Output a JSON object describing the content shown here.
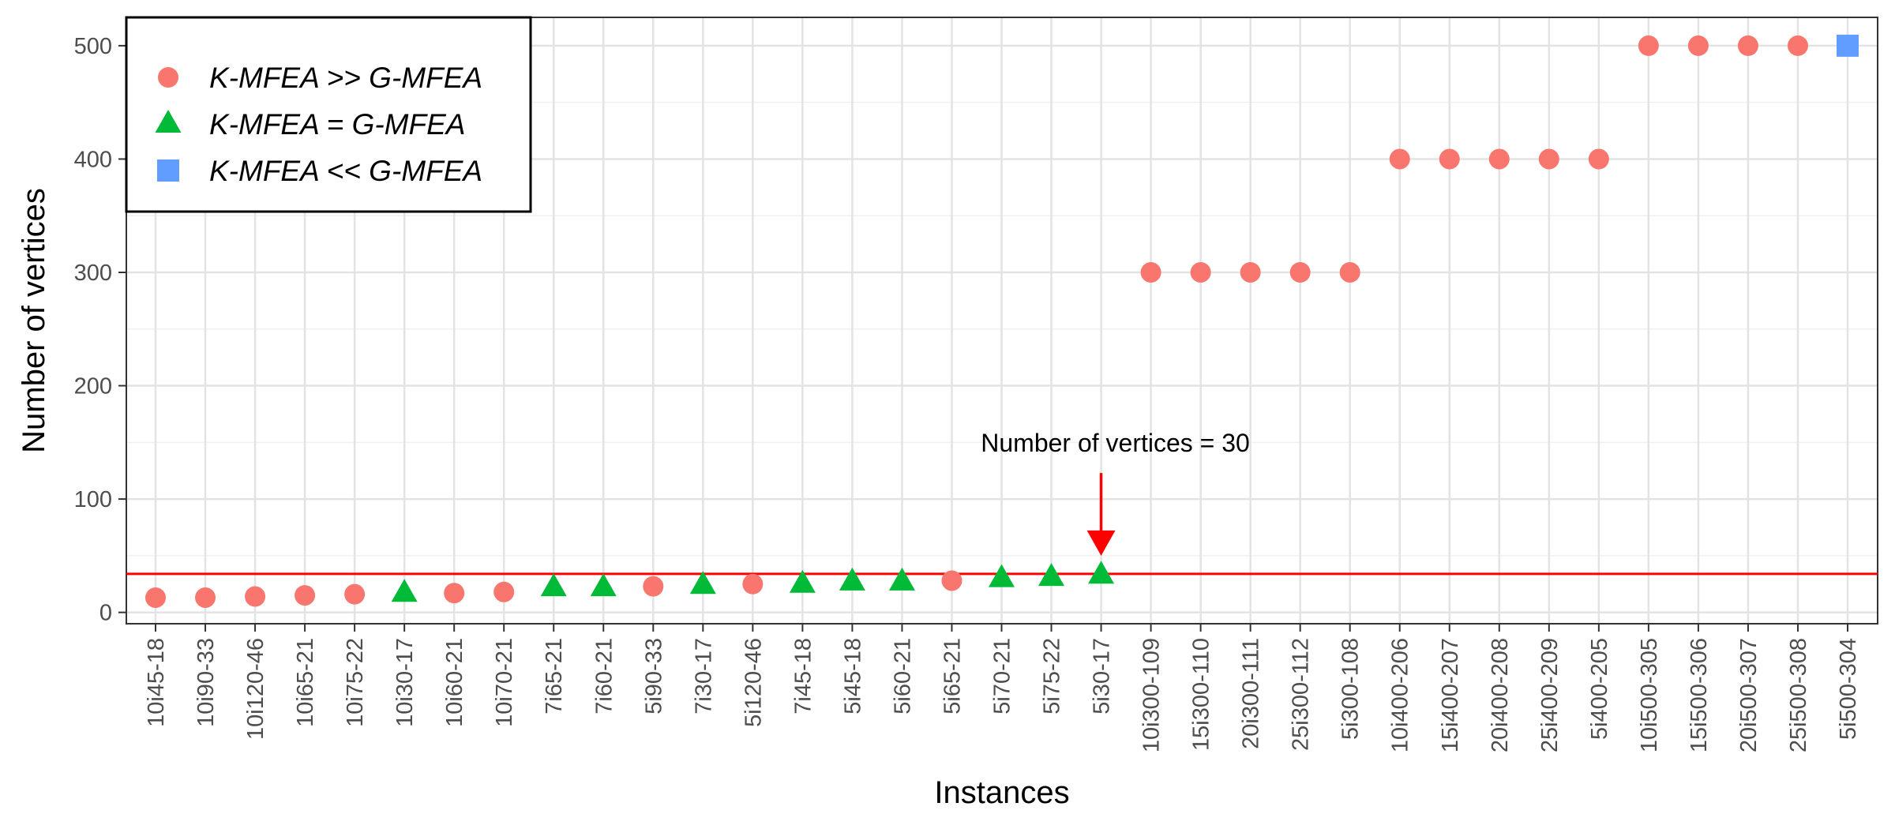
{
  "chart_data": {
    "type": "scatter",
    "title": "",
    "xlabel": "Instances",
    "ylabel": "Number of vertices",
    "ylim": [
      -10,
      525
    ],
    "yticks": [
      0,
      100,
      200,
      300,
      400,
      500
    ],
    "grid": true,
    "legend_position": "top-left",
    "colors": {
      "K-MFEA >> G-MFEA": "#f8766d",
      "K-MFEA = G-MFEA": "#00ba38",
      "K-MFEA << G-MFEA": "#619cff",
      "reference_line": "#ff0000"
    },
    "series": [
      {
        "name": "K-MFEA >> G-MFEA",
        "marker": "circle"
      },
      {
        "name": "K-MFEA = G-MFEA",
        "marker": "triangle"
      },
      {
        "name": "K-MFEA << G-MFEA",
        "marker": "square"
      }
    ],
    "points": [
      {
        "x": "10i45-18",
        "y": 13,
        "series": 0
      },
      {
        "x": "10i90-33",
        "y": 13,
        "series": 0
      },
      {
        "x": "10i120-46",
        "y": 14,
        "series": 0
      },
      {
        "x": "10i65-21",
        "y": 15,
        "series": 0
      },
      {
        "x": "10i75-22",
        "y": 16,
        "series": 0
      },
      {
        "x": "10i30-17",
        "y": 17,
        "series": 1
      },
      {
        "x": "10i60-21",
        "y": 17,
        "series": 0
      },
      {
        "x": "10i70-21",
        "y": 18,
        "series": 0
      },
      {
        "x": "7i65-21",
        "y": 22,
        "series": 1
      },
      {
        "x": "7i60-21",
        "y": 22,
        "series": 1
      },
      {
        "x": "5i90-33",
        "y": 23,
        "series": 0
      },
      {
        "x": "7i30-17",
        "y": 24,
        "series": 1
      },
      {
        "x": "5i120-46",
        "y": 25,
        "series": 0
      },
      {
        "x": "7i45-18",
        "y": 25,
        "series": 1
      },
      {
        "x": "5i45-18",
        "y": 27,
        "series": 1
      },
      {
        "x": "5i60-21",
        "y": 27,
        "series": 1
      },
      {
        "x": "5i65-21",
        "y": 28,
        "series": 0
      },
      {
        "x": "5i70-21",
        "y": 30,
        "series": 1
      },
      {
        "x": "5i75-22",
        "y": 31,
        "series": 1
      },
      {
        "x": "5i30-17",
        "y": 33,
        "series": 1
      },
      {
        "x": "10i300-109",
        "y": 300,
        "series": 0
      },
      {
        "x": "15i300-110",
        "y": 300,
        "series": 0
      },
      {
        "x": "20i300-111",
        "y": 300,
        "series": 0
      },
      {
        "x": "25i300-112",
        "y": 300,
        "series": 0
      },
      {
        "x": "5i300-108",
        "y": 300,
        "series": 0
      },
      {
        "x": "10i400-206",
        "y": 400,
        "series": 0
      },
      {
        "x": "15i400-207",
        "y": 400,
        "series": 0
      },
      {
        "x": "20i400-208",
        "y": 400,
        "series": 0
      },
      {
        "x": "25i400-209",
        "y": 400,
        "series": 0
      },
      {
        "x": "5i400-205",
        "y": 400,
        "series": 0
      },
      {
        "x": "10i500-305",
        "y": 500,
        "series": 0
      },
      {
        "x": "15i500-306",
        "y": 500,
        "series": 0
      },
      {
        "x": "20i500-307",
        "y": 500,
        "series": 0
      },
      {
        "x": "25i500-308",
        "y": 500,
        "series": 0
      },
      {
        "x": "5i500-304",
        "y": 500,
        "series": 2
      }
    ],
    "reference_line": {
      "y": 34
    },
    "annotation": {
      "text": "Number of vertices = 30",
      "target_category": "5i30-17",
      "arrow_from_y": 123,
      "arrow_to_y": 50,
      "text_y": 142
    }
  }
}
